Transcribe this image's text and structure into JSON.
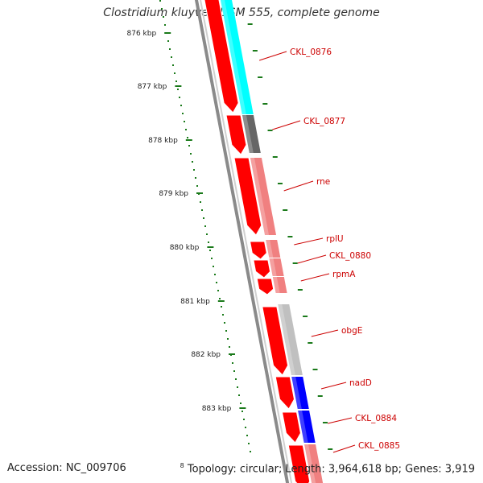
{
  "header": {
    "title": "Clostridium kluyveri DSM 555, complete genome"
  },
  "footer": {
    "accession": "Accession: NC_009706",
    "topology": "Topology: circular; Length: 3,964,618 bp; Genes: 3,919",
    "edge_label": "8"
  },
  "colors": {
    "backbone": "#8a8a8a",
    "scale": "#1a7a1a",
    "forward": "#ff0000",
    "label": "#cc0000"
  },
  "scale": {
    "ticks": [
      "876 kbp",
      "877 kbp",
      "878 kbp",
      "879 kbp",
      "880 kbp",
      "881 kbp",
      "882 kbp",
      "883 kbp"
    ]
  },
  "genes": [
    {
      "name": "CKL_0876",
      "cog_color": "#00ffff"
    },
    {
      "name": "CKL_0877",
      "cog_color": "#666666"
    },
    {
      "name": "rne",
      "cog_color": "#f08080"
    },
    {
      "name": "rplU",
      "cog_color": "#f08080"
    },
    {
      "name": "CKL_0880",
      "cog_color": "#f08080"
    },
    {
      "name": "rpmA",
      "cog_color": "#f08080"
    },
    {
      "name": "obgE",
      "cog_color": "#c0c0c0"
    },
    {
      "name": "nadD",
      "cog_color": "#0000ff"
    },
    {
      "name": "CKL_0884",
      "cog_color": "#0000ff"
    },
    {
      "name": "CKL_0885",
      "cog_color": "#f08080"
    }
  ]
}
